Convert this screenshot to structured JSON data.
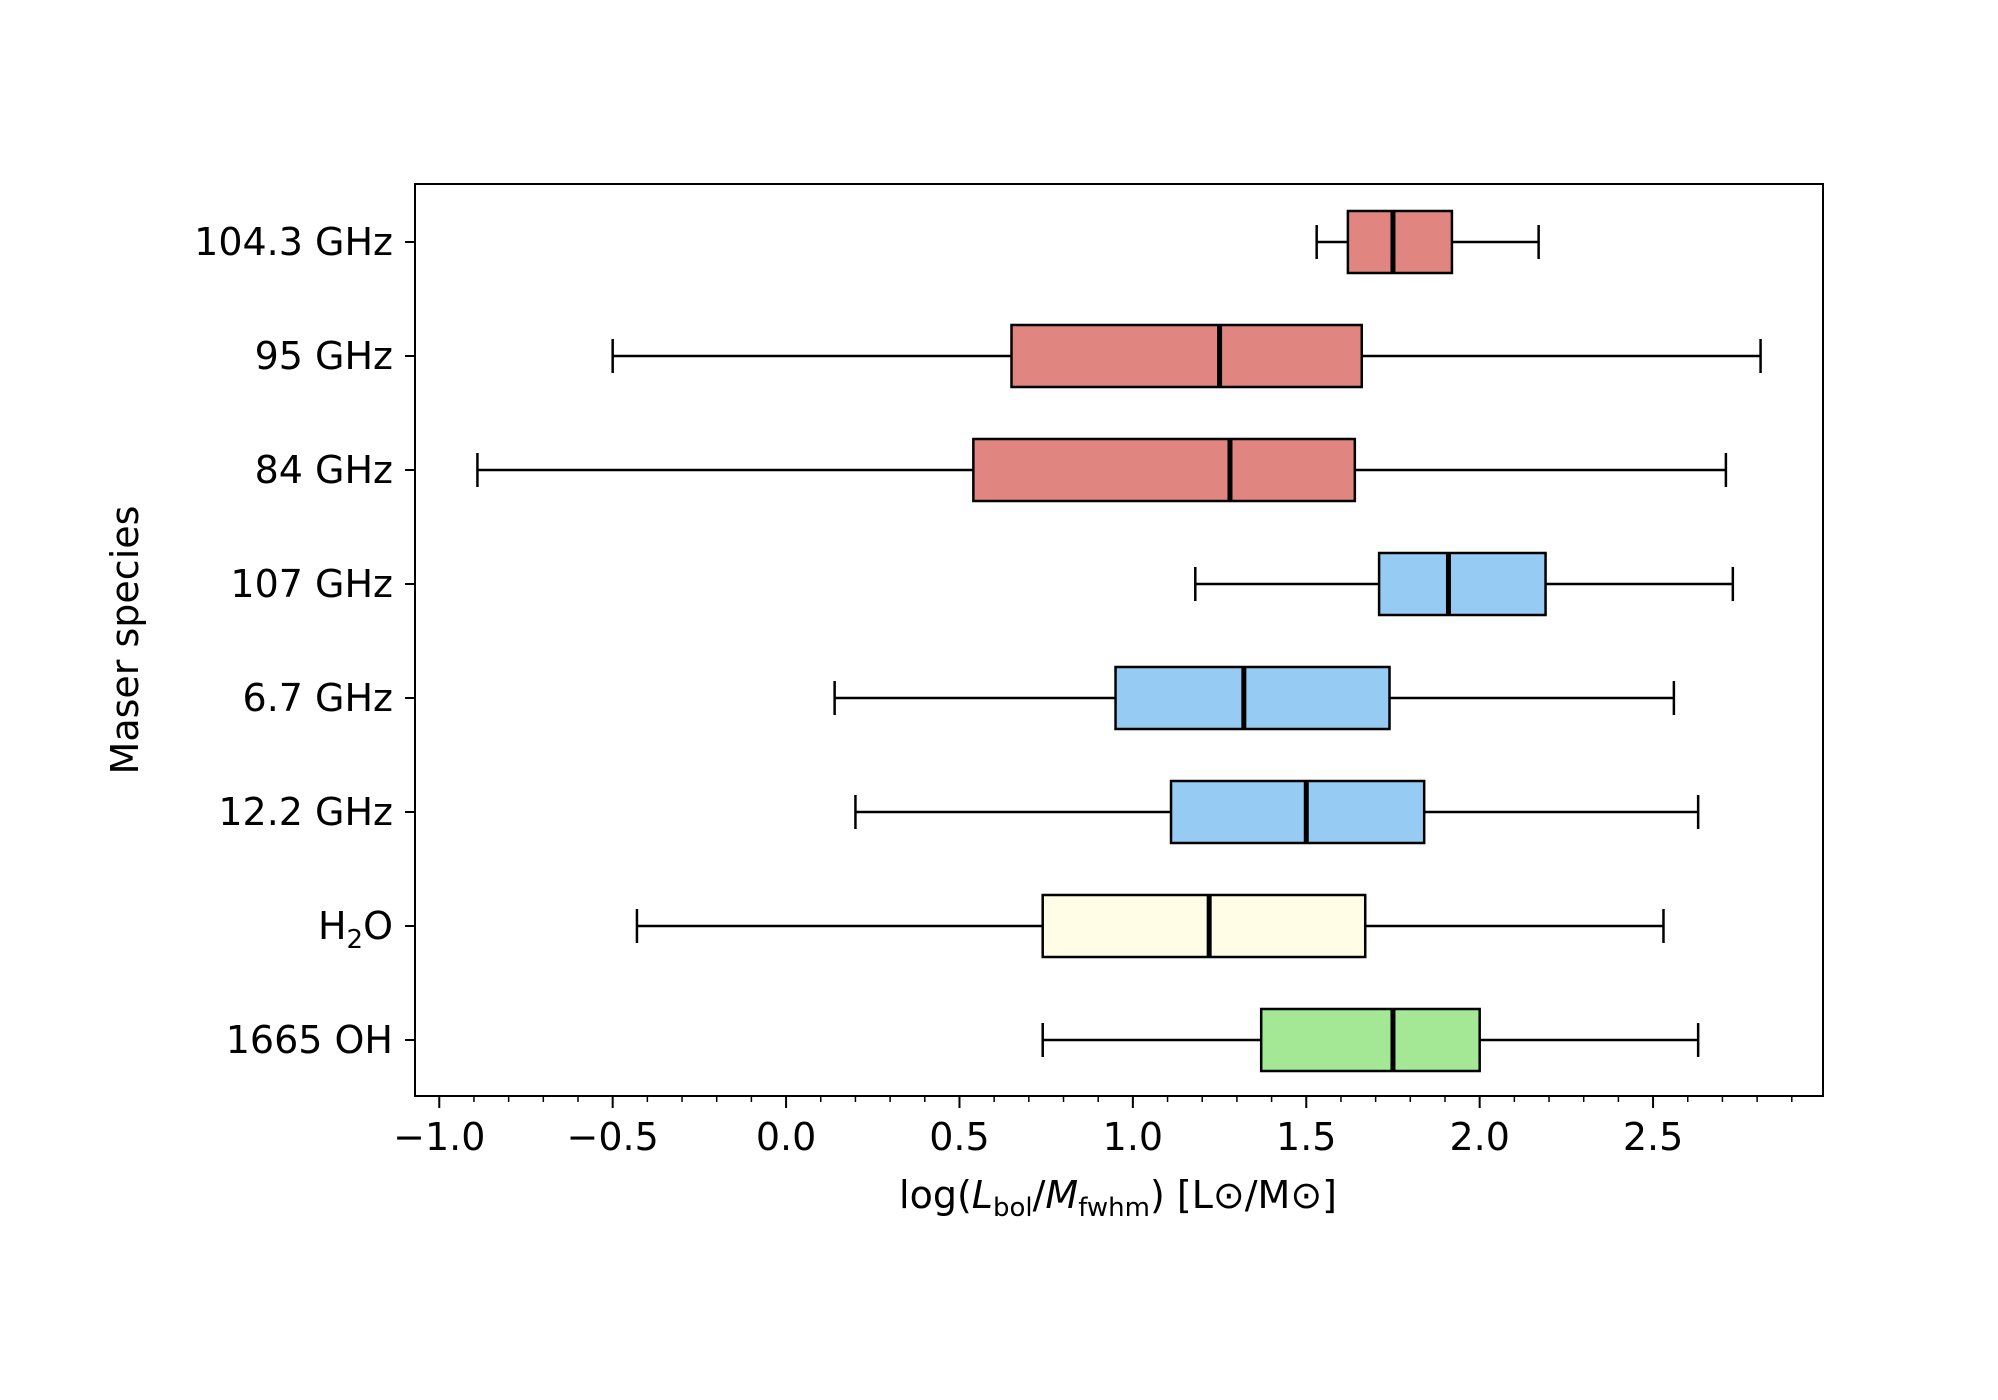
{
  "chart_data": {
    "type": "boxplot",
    "orientation": "horizontal",
    "xlabel": {
      "prefix": "log(",
      "l_main": "L",
      "l_sub": "bol",
      "slash": "/",
      "m_main": "M",
      "m_sub": "fwhm",
      "suffix": ") [L⊙/M⊙]"
    },
    "ylabel": "Maser species",
    "xlim": [
      -1.07,
      2.99
    ],
    "xticks": [
      -1.0,
      -0.5,
      0.0,
      0.5,
      1.0,
      1.5,
      2.0,
      2.5
    ],
    "xtick_labels": [
      "−1.0",
      "−0.5",
      "0.0",
      "0.5",
      "1.0",
      "1.5",
      "2.0",
      "2.5"
    ],
    "xminor_step": 0.1,
    "grid": false,
    "legend": "none",
    "categories": [
      {
        "label": "104.3 GHz",
        "main": "104.3 GHz",
        "sub": "",
        "tail": "",
        "whisker_low": 1.53,
        "q1": 1.62,
        "median": 1.75,
        "q3": 1.92,
        "whisker_high": 2.17,
        "color": "#e0857f"
      },
      {
        "label": "95 GHz",
        "main": "95 GHz",
        "sub": "",
        "tail": "",
        "whisker_low": -0.5,
        "q1": 0.65,
        "median": 1.25,
        "q3": 1.66,
        "whisker_high": 2.81,
        "color": "#e0857f"
      },
      {
        "label": "84 GHz",
        "main": "84 GHz",
        "sub": "",
        "tail": "",
        "whisker_low": -0.89,
        "q1": 0.54,
        "median": 1.28,
        "q3": 1.64,
        "whisker_high": 2.71,
        "color": "#e0857f"
      },
      {
        "label": "107 GHz",
        "main": "107 GHz",
        "sub": "",
        "tail": "",
        "whisker_low": 1.18,
        "q1": 1.71,
        "median": 1.91,
        "q3": 2.19,
        "whisker_high": 2.73,
        "color": "#96cbf4"
      },
      {
        "label": "6.7 GHz",
        "main": "6.7 GHz",
        "sub": "",
        "tail": "",
        "whisker_low": 0.14,
        "q1": 0.95,
        "median": 1.32,
        "q3": 1.74,
        "whisker_high": 2.56,
        "color": "#96cbf4"
      },
      {
        "label": "12.2 GHz",
        "main": "12.2 GHz",
        "sub": "",
        "tail": "",
        "whisker_low": 0.2,
        "q1": 1.11,
        "median": 1.5,
        "q3": 1.84,
        "whisker_high": 2.63,
        "color": "#96cbf4"
      },
      {
        "label": "H2O",
        "main": "H",
        "sub": "2",
        "tail": "O",
        "whisker_low": -0.43,
        "q1": 0.74,
        "median": 1.22,
        "q3": 1.67,
        "whisker_high": 2.53,
        "color": "#fffde6"
      },
      {
        "label": "1665 OH",
        "main": "1665 OH",
        "sub": "",
        "tail": "",
        "whisker_low": 0.74,
        "q1": 1.37,
        "median": 1.75,
        "q3": 2.0,
        "whisker_high": 2.63,
        "color": "#a4e896"
      }
    ]
  }
}
